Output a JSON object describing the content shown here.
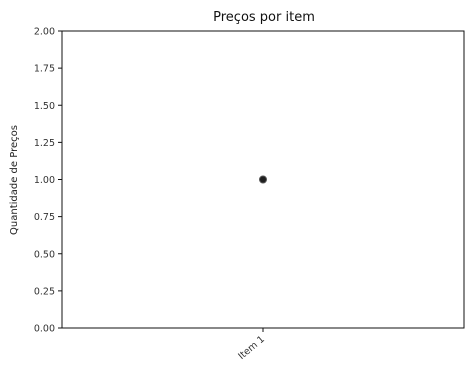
{
  "chart_data": {
    "type": "scatter",
    "title": "Preços por item",
    "xlabel": "",
    "ylabel": "Quantidade de Preços",
    "categories": [
      "Item 1"
    ],
    "x": [
      "Item 1"
    ],
    "y": [
      1.0
    ],
    "ylim": [
      0,
      2
    ],
    "yticks": [
      "0.00",
      "0.25",
      "0.50",
      "0.75",
      "1.00",
      "1.25",
      "1.50",
      "1.75",
      "2.00"
    ],
    "grid": false,
    "marker_color": "#1f1f1f"
  }
}
